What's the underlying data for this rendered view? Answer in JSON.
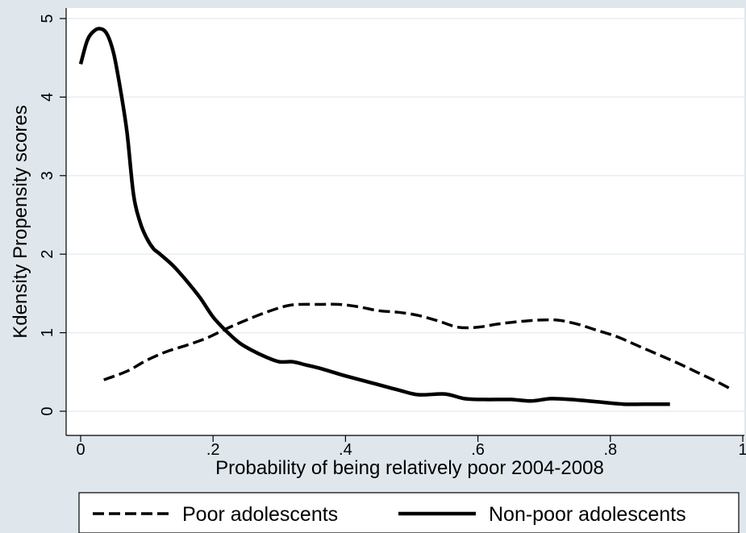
{
  "chart_data": {
    "type": "line",
    "xlabel": "Probability of being relatively poor 2004-2008",
    "ylabel": "Kdensity Propensity scores",
    "xlim": [
      0,
      1
    ],
    "ylim": [
      0,
      5
    ],
    "x_ticks": [
      0,
      0.2,
      0.4,
      0.6,
      0.8,
      1
    ],
    "x_tick_labels": [
      "0",
      ".2",
      ".4",
      ".6",
      ".8",
      "1"
    ],
    "y_ticks": [
      0,
      1,
      2,
      3,
      4,
      5
    ],
    "y_tick_labels": [
      "0",
      "1",
      "2",
      "3",
      "4",
      "5"
    ],
    "grid": true,
    "legend_position": "bottom",
    "series": [
      {
        "name": "Poor adolescents",
        "style": "dashed",
        "color": "#000000",
        "x": [
          0.035,
          0.07,
          0.1,
          0.13,
          0.16,
          0.19,
          0.22,
          0.25,
          0.28,
          0.31,
          0.33,
          0.36,
          0.39,
          0.42,
          0.45,
          0.48,
          0.51,
          0.54,
          0.57,
          0.6,
          0.63,
          0.66,
          0.69,
          0.72,
          0.75,
          0.78,
          0.81,
          0.84,
          0.87,
          0.9,
          0.93,
          0.96,
          0.985
        ],
        "y": [
          0.4,
          0.51,
          0.65,
          0.76,
          0.84,
          0.93,
          1.05,
          1.16,
          1.26,
          1.34,
          1.36,
          1.36,
          1.36,
          1.33,
          1.28,
          1.26,
          1.22,
          1.15,
          1.07,
          1.07,
          1.11,
          1.14,
          1.16,
          1.16,
          1.11,
          1.03,
          0.95,
          0.84,
          0.73,
          0.62,
          0.5,
          0.38,
          0.27
        ]
      },
      {
        "name": "Non-poor adolescents",
        "style": "solid",
        "color": "#000000",
        "x": [
          0.0,
          0.01,
          0.02,
          0.03,
          0.04,
          0.05,
          0.06,
          0.07,
          0.08,
          0.09,
          0.1,
          0.11,
          0.12,
          0.14,
          0.16,
          0.18,
          0.2,
          0.22,
          0.24,
          0.26,
          0.28,
          0.3,
          0.32,
          0.34,
          0.36,
          0.38,
          0.4,
          0.44,
          0.48,
          0.51,
          0.55,
          0.58,
          0.61,
          0.65,
          0.68,
          0.71,
          0.74,
          0.78,
          0.82,
          0.86,
          0.89
        ],
        "y": [
          4.42,
          4.72,
          4.84,
          4.87,
          4.8,
          4.55,
          4.1,
          3.55,
          2.75,
          2.4,
          2.2,
          2.07,
          2.0,
          1.85,
          1.66,
          1.45,
          1.2,
          1.02,
          0.87,
          0.77,
          0.69,
          0.63,
          0.63,
          0.59,
          0.55,
          0.5,
          0.45,
          0.36,
          0.27,
          0.21,
          0.22,
          0.16,
          0.15,
          0.15,
          0.13,
          0.16,
          0.15,
          0.12,
          0.09,
          0.09,
          0.09
        ]
      }
    ]
  }
}
